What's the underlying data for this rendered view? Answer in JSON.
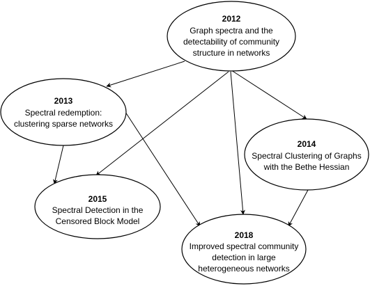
{
  "nodes": {
    "n2012": {
      "year": "2012",
      "title_lines": [
        "Graph spectra and the",
        "detectability of community",
        "structure in networks"
      ]
    },
    "n2013": {
      "year": "2013",
      "title_lines": [
        "Spectral redemption:",
        "clustering sparse networks"
      ]
    },
    "n2014": {
      "year": "2014",
      "title_lines": [
        "Spectral Clustering of Graphs",
        "with the Bethe Hessian"
      ]
    },
    "n2015": {
      "year": "2015",
      "title_lines": [
        "Spectral Detection in the",
        "Censored Block Model"
      ]
    },
    "n2018": {
      "year": "2018",
      "title_lines": [
        "Improved spectral community",
        "detection in large",
        "heterogeneous networks"
      ]
    }
  },
  "edges": [
    {
      "from": "2012",
      "to": "2013"
    },
    {
      "from": "2012",
      "to": "2014"
    },
    {
      "from": "2012",
      "to": "2015"
    },
    {
      "from": "2012",
      "to": "2018"
    },
    {
      "from": "2013",
      "to": "2015"
    },
    {
      "from": "2013",
      "to": "2018"
    },
    {
      "from": "2014",
      "to": "2018"
    }
  ]
}
